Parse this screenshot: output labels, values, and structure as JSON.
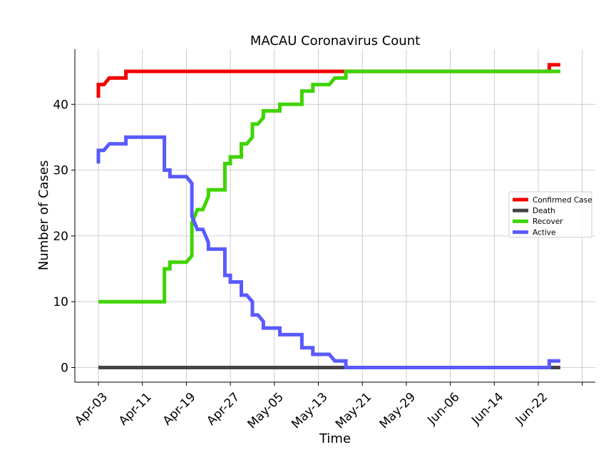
{
  "chart_data": {
    "type": "line",
    "title": "MACAU Coronavirus Count",
    "xlabel": "Time",
    "ylabel": "Number of Cases",
    "x_ticks": [
      "Apr-03",
      "Apr-11",
      "Apr-19",
      "Apr-27",
      "May-05",
      "May-13",
      "May-21",
      "May-29",
      "Jun-06",
      "Jun-14",
      "Jun-22"
    ],
    "y_ticks": [
      0,
      10,
      20,
      30,
      40
    ],
    "xlim": [
      "2020-03-29",
      "2020-06-29"
    ],
    "ylim": [
      -2.2,
      48.7
    ],
    "grid": true,
    "legend_position": "center-right",
    "series": [
      {
        "name": "Confirmed Case",
        "color": "#f20000",
        "points": [
          [
            "2020-04-03",
            41
          ],
          [
            "2020-04-03",
            43
          ],
          [
            "2020-04-04",
            43
          ],
          [
            "2020-04-05",
            44
          ],
          [
            "2020-04-08",
            44
          ],
          [
            "2020-04-08",
            45
          ],
          [
            "2020-06-24",
            45
          ],
          [
            "2020-06-24",
            46
          ],
          [
            "2020-06-26",
            46
          ]
        ]
      },
      {
        "name": "Death",
        "color": "#444444",
        "points": [
          [
            "2020-04-03",
            0
          ],
          [
            "2020-06-26",
            0
          ]
        ]
      },
      {
        "name": "Recover",
        "color": "#3fd400",
        "points": [
          [
            "2020-04-03",
            10
          ],
          [
            "2020-04-15",
            10
          ],
          [
            "2020-04-15",
            15
          ],
          [
            "2020-04-16",
            15
          ],
          [
            "2020-04-16",
            16
          ],
          [
            "2020-04-19",
            16
          ],
          [
            "2020-04-20",
            17
          ],
          [
            "2020-04-20",
            22
          ],
          [
            "2020-04-21",
            24
          ],
          [
            "2020-04-22",
            24
          ],
          [
            "2020-04-23",
            26
          ],
          [
            "2020-04-23",
            27
          ],
          [
            "2020-04-26",
            27
          ],
          [
            "2020-04-26",
            31
          ],
          [
            "2020-04-27",
            31
          ],
          [
            "2020-04-27",
            32
          ],
          [
            "2020-04-29",
            32
          ],
          [
            "2020-04-29",
            34
          ],
          [
            "2020-04-30",
            34
          ],
          [
            "2020-05-01",
            35
          ],
          [
            "2020-05-01",
            37
          ],
          [
            "2020-05-02",
            37
          ],
          [
            "2020-05-03",
            38
          ],
          [
            "2020-05-03",
            39
          ],
          [
            "2020-05-06",
            39
          ],
          [
            "2020-05-06",
            40
          ],
          [
            "2020-05-10",
            40
          ],
          [
            "2020-05-10",
            42
          ],
          [
            "2020-05-12",
            42
          ],
          [
            "2020-05-12",
            43
          ],
          [
            "2020-05-15",
            43
          ],
          [
            "2020-05-16",
            44
          ],
          [
            "2020-05-18",
            44
          ],
          [
            "2020-05-18",
            45
          ],
          [
            "2020-06-26",
            45
          ]
        ]
      },
      {
        "name": "Active",
        "color": "#5a5aff",
        "points": [
          [
            "2020-04-03",
            31
          ],
          [
            "2020-04-03",
            33
          ],
          [
            "2020-04-04",
            33
          ],
          [
            "2020-04-05",
            34
          ],
          [
            "2020-04-08",
            34
          ],
          [
            "2020-04-08",
            35
          ],
          [
            "2020-04-15",
            35
          ],
          [
            "2020-04-15",
            30
          ],
          [
            "2020-04-16",
            30
          ],
          [
            "2020-04-16",
            29
          ],
          [
            "2020-04-19",
            29
          ],
          [
            "2020-04-20",
            28
          ],
          [
            "2020-04-20",
            23
          ],
          [
            "2020-04-21",
            21
          ],
          [
            "2020-04-22",
            21
          ],
          [
            "2020-04-23",
            19
          ],
          [
            "2020-04-23",
            18
          ],
          [
            "2020-04-26",
            18
          ],
          [
            "2020-04-26",
            14
          ],
          [
            "2020-04-27",
            14
          ],
          [
            "2020-04-27",
            13
          ],
          [
            "2020-04-29",
            13
          ],
          [
            "2020-04-29",
            11
          ],
          [
            "2020-04-30",
            11
          ],
          [
            "2020-05-01",
            10
          ],
          [
            "2020-05-01",
            8
          ],
          [
            "2020-05-02",
            8
          ],
          [
            "2020-05-03",
            7
          ],
          [
            "2020-05-03",
            6
          ],
          [
            "2020-05-06",
            6
          ],
          [
            "2020-05-06",
            5
          ],
          [
            "2020-05-10",
            5
          ],
          [
            "2020-05-10",
            3
          ],
          [
            "2020-05-12",
            3
          ],
          [
            "2020-05-12",
            2
          ],
          [
            "2020-05-15",
            2
          ],
          [
            "2020-05-16",
            1
          ],
          [
            "2020-05-18",
            1
          ],
          [
            "2020-05-18",
            0
          ],
          [
            "2020-06-24",
            0
          ],
          [
            "2020-06-24",
            1
          ],
          [
            "2020-06-26",
            1
          ]
        ]
      }
    ]
  }
}
